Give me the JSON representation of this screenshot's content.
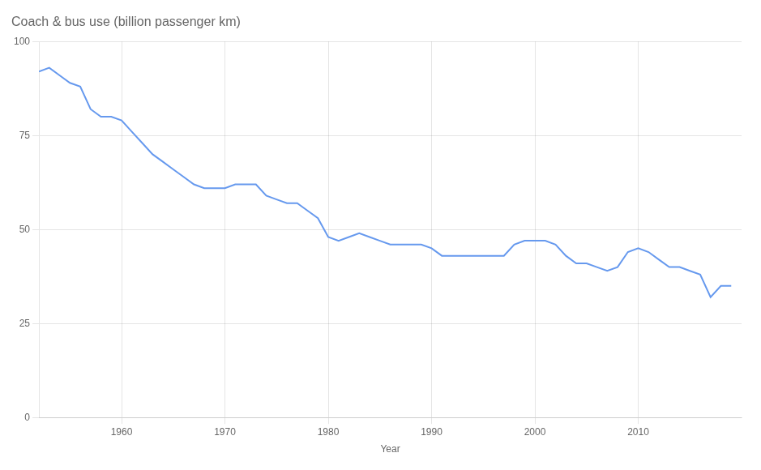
{
  "chart_data": {
    "type": "line",
    "title": "Coach & bus use (billion passenger km)",
    "xlabel": "Year",
    "x": [
      1952,
      1953,
      1954,
      1955,
      1956,
      1957,
      1958,
      1959,
      1960,
      1961,
      1962,
      1963,
      1964,
      1965,
      1966,
      1967,
      1968,
      1969,
      1970,
      1971,
      1972,
      1973,
      1974,
      1975,
      1976,
      1977,
      1978,
      1979,
      1980,
      1981,
      1982,
      1983,
      1984,
      1985,
      1986,
      1987,
      1988,
      1989,
      1990,
      1991,
      1992,
      1993,
      1994,
      1995,
      1996,
      1997,
      1998,
      1999,
      2000,
      2001,
      2002,
      2003,
      2004,
      2005,
      2006,
      2007,
      2008,
      2009,
      2010,
      2011,
      2012,
      2013,
      2014,
      2015,
      2016,
      2017,
      2018,
      2019
    ],
    "values": [
      92,
      93,
      91,
      89,
      88,
      82,
      80,
      80,
      79,
      76,
      73,
      70,
      68,
      66,
      64,
      62,
      61,
      61,
      61,
      62,
      62,
      62,
      59,
      58,
      57,
      57,
      55,
      53,
      48,
      47,
      48,
      49,
      48,
      47,
      46,
      46,
      46,
      46,
      45,
      43,
      43,
      43,
      43,
      43,
      43,
      43,
      46,
      47,
      47,
      47,
      46,
      43,
      41,
      41,
      40,
      39,
      40,
      44,
      45,
      44,
      42,
      40,
      40,
      39,
      38,
      32,
      35,
      35
    ],
    "color": "#6699ee",
    "xlim": [
      1952,
      2020
    ],
    "xticks": [
      1960,
      1970,
      1980,
      1990,
      2000,
      2010
    ],
    "ylim": [
      0,
      100
    ],
    "yticks": [
      0,
      25,
      50,
      75,
      100
    ],
    "grid": true
  }
}
